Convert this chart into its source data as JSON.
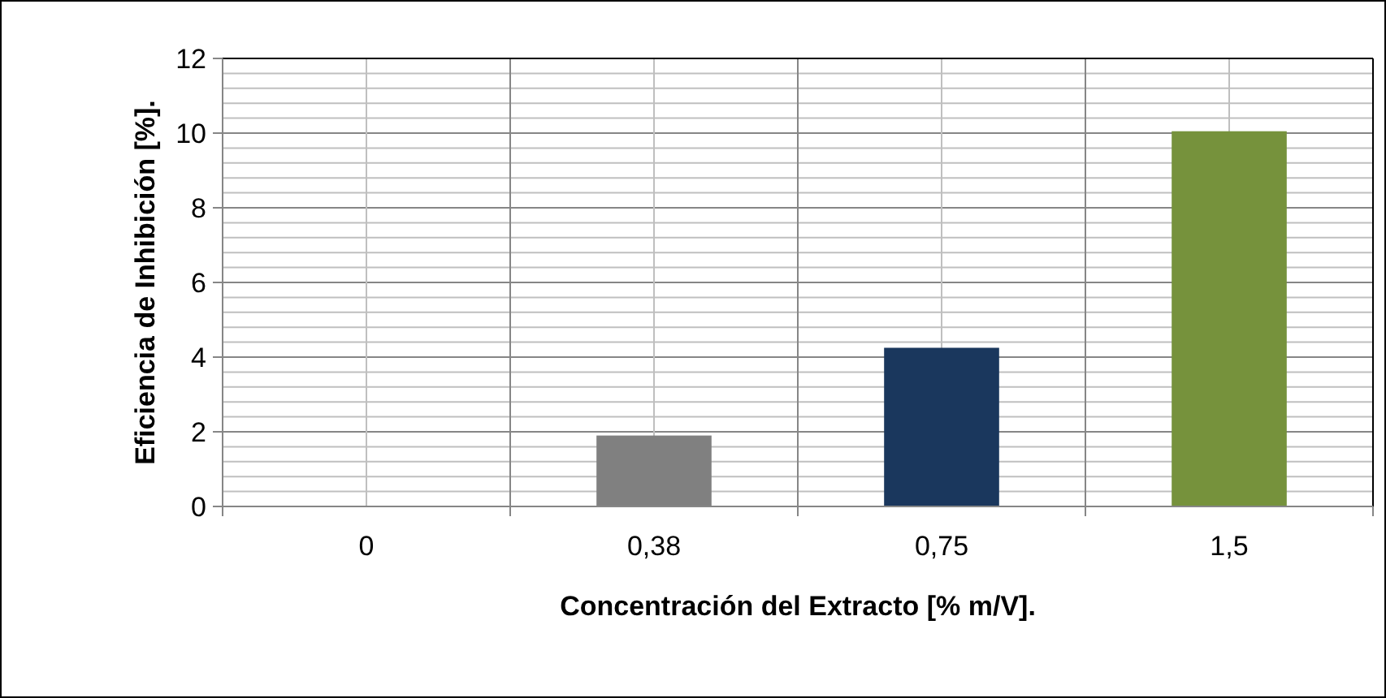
{
  "chart_data": {
    "type": "bar",
    "xlabel": "Concentración del Extracto [% m/V].",
    "ylabel": "Eficiencia de Inhibición [%].",
    "categories": [
      "0",
      "0,38",
      "0,75",
      "1,5"
    ],
    "values": [
      0,
      1.9,
      4.25,
      10.05
    ],
    "colors": [
      "#808080",
      "#808080",
      "#1a375d",
      "#76923c"
    ],
    "ylim": [
      0,
      12
    ],
    "yticks": [
      0,
      2,
      4,
      6,
      8,
      10,
      12
    ],
    "grid": true
  }
}
